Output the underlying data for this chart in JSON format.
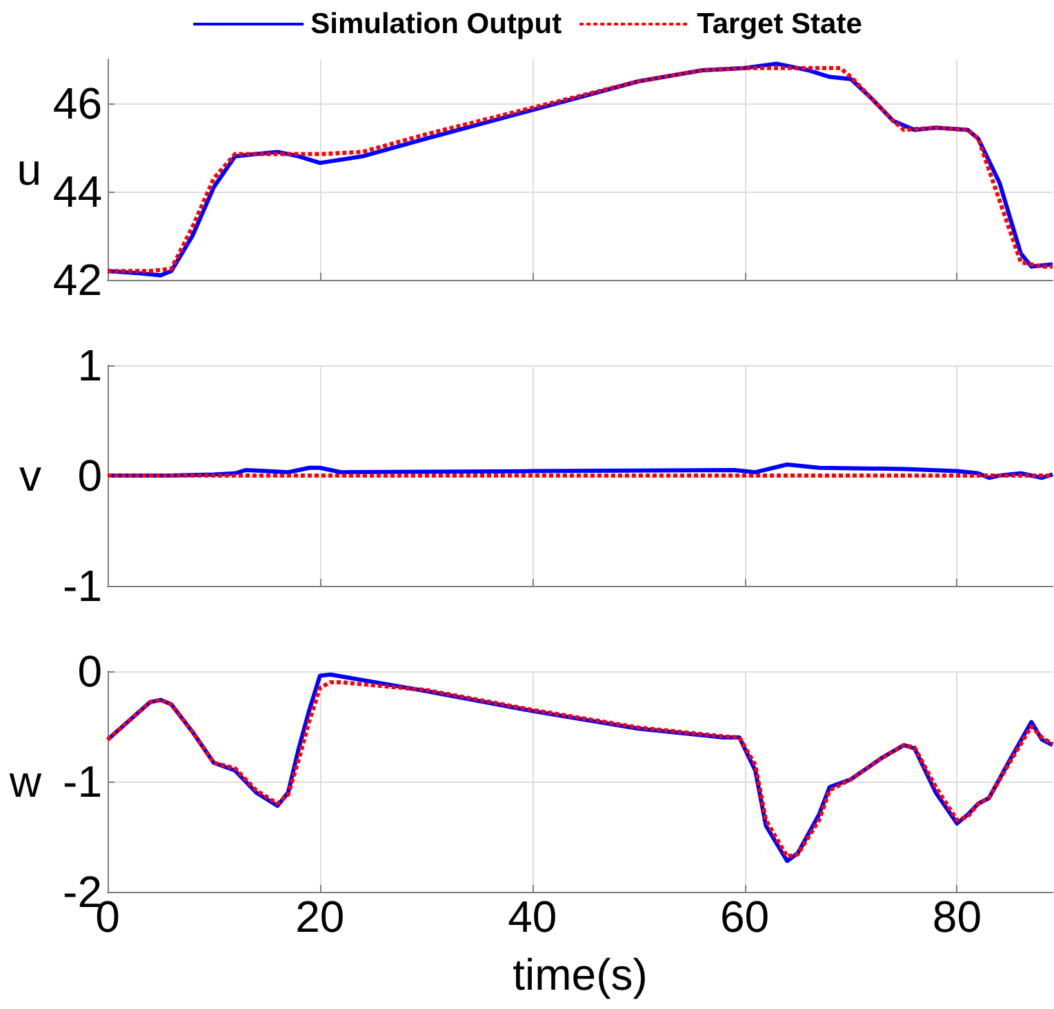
{
  "chart_data": [
    {
      "type": "line",
      "ylabel": "u",
      "xlim": [
        0,
        89
      ],
      "xticks": [
        0,
        20,
        40,
        60,
        80
      ],
      "ylim": [
        42,
        47
      ],
      "yticks": [
        42,
        44,
        46
      ],
      "grid": true,
      "legend": "top",
      "tick_labels": "y",
      "marker": "none",
      "series": [
        {
          "name": "Simulation Output",
          "color": "#0000ff",
          "line_style": "solid",
          "x": [
            0,
            3,
            5,
            6,
            8,
            10,
            12,
            14,
            16,
            18,
            20,
            24,
            30,
            40,
            50,
            56,
            60,
            63,
            66,
            68,
            70,
            72,
            74,
            76,
            78,
            81,
            82,
            84,
            86,
            87,
            89
          ],
          "values": [
            42.2,
            42.15,
            42.1,
            42.2,
            43,
            44.1,
            44.8,
            44.85,
            44.9,
            44.8,
            44.65,
            44.8,
            45.2,
            45.85,
            46.5,
            46.75,
            46.8,
            46.9,
            46.75,
            46.6,
            46.55,
            46.1,
            45.6,
            45.4,
            45.45,
            45.4,
            45.2,
            44.2,
            42.6,
            42.3,
            42.35
          ]
        },
        {
          "name": "Target State",
          "color": "#ff0000",
          "line_style": "dotted",
          "x": [
            0,
            4,
            6,
            8,
            10,
            12,
            14,
            20,
            24,
            30,
            40,
            50,
            56,
            60,
            65,
            69,
            70,
            72,
            74,
            75,
            78,
            81,
            82,
            84,
            86,
            88,
            89
          ],
          "values": [
            42.2,
            42.2,
            42.25,
            43.2,
            44.3,
            44.85,
            44.85,
            44.85,
            44.9,
            45.3,
            45.9,
            46.5,
            46.75,
            46.8,
            46.8,
            46.8,
            46.6,
            46.1,
            45.6,
            45.4,
            45.45,
            45.4,
            45.2,
            43.8,
            42.4,
            42.3,
            42.3
          ]
        }
      ]
    },
    {
      "type": "line",
      "ylabel": "v",
      "xlim": [
        0,
        89
      ],
      "xticks": [
        0,
        20,
        40,
        60,
        80
      ],
      "ylim": [
        -1,
        1
      ],
      "yticks": [
        -1,
        0,
        1
      ],
      "grid": true,
      "tick_labels": "y",
      "marker": "none",
      "series": [
        {
          "color": "#0000ff",
          "line_style": "solid",
          "x": [
            0,
            6,
            10,
            12,
            13,
            15,
            17,
            19,
            20,
            22,
            40,
            59,
            61,
            64,
            67,
            75,
            80,
            82,
            83,
            84,
            86,
            88,
            89
          ],
          "values": [
            0,
            0,
            0.01,
            0.02,
            0.05,
            0.04,
            0.03,
            0.07,
            0.07,
            0.03,
            0.04,
            0.05,
            0.03,
            0.1,
            0.07,
            0.06,
            0.04,
            0.02,
            -0.02,
            0,
            0.02,
            -0.02,
            0.01
          ]
        },
        {
          "color": "#ff0000",
          "line_style": "dotted",
          "x": [
            0,
            89
          ],
          "values": [
            0,
            0
          ]
        }
      ]
    },
    {
      "type": "line",
      "ylabel": "w",
      "xlabel": "time(s)",
      "xlim": [
        0,
        89
      ],
      "xticks": [
        0,
        20,
        40,
        60,
        80
      ],
      "ylim": [
        -2,
        0
      ],
      "yticks": [
        -2,
        -1,
        0
      ],
      "grid": true,
      "marker": "none",
      "series": [
        {
          "color": "#0000ff",
          "line_style": "solid",
          "x": [
            0,
            2,
            4,
            5,
            6,
            8,
            10,
            12,
            14,
            16,
            17,
            18,
            19,
            20,
            21,
            30,
            40,
            50,
            58,
            59.5,
            61,
            62,
            64,
            65,
            67,
            68,
            70,
            73,
            75,
            76,
            78,
            80,
            81,
            82,
            83,
            85,
            87,
            88,
            89
          ],
          "values": [
            -0.62,
            -0.45,
            -0.28,
            -0.26,
            -0.3,
            -0.55,
            -0.83,
            -0.9,
            -1.1,
            -1.22,
            -1.1,
            -0.7,
            -0.35,
            -0.04,
            -0.03,
            -0.18,
            -0.36,
            -0.52,
            -0.6,
            -0.6,
            -0.9,
            -1.4,
            -1.72,
            -1.65,
            -1.3,
            -1.05,
            -0.98,
            -0.78,
            -0.67,
            -0.7,
            -1.1,
            -1.38,
            -1.3,
            -1.2,
            -1.15,
            -0.8,
            -0.46,
            -0.62,
            -0.67
          ]
        },
        {
          "color": "#ff0000",
          "line_style": "dotted",
          "x": [
            0,
            2,
            4,
            5,
            6,
            8,
            10,
            12,
            14,
            16,
            17,
            18,
            19,
            20,
            21,
            22,
            30,
            40,
            50,
            58,
            59.5,
            61,
            62,
            64,
            65,
            67,
            68,
            70,
            73,
            75,
            76,
            78,
            80,
            81,
            82,
            83,
            85,
            87,
            88,
            89
          ],
          "values": [
            -0.62,
            -0.45,
            -0.28,
            -0.26,
            -0.3,
            -0.55,
            -0.83,
            -0.88,
            -1.08,
            -1.2,
            -1.12,
            -0.8,
            -0.45,
            -0.15,
            -0.1,
            -0.1,
            -0.17,
            -0.35,
            -0.51,
            -0.59,
            -0.6,
            -0.85,
            -1.35,
            -1.68,
            -1.66,
            -1.35,
            -1.08,
            -0.98,
            -0.78,
            -0.67,
            -0.69,
            -1.05,
            -1.35,
            -1.32,
            -1.2,
            -1.15,
            -0.82,
            -0.5,
            -0.6,
            -0.66
          ]
        }
      ]
    }
  ]
}
